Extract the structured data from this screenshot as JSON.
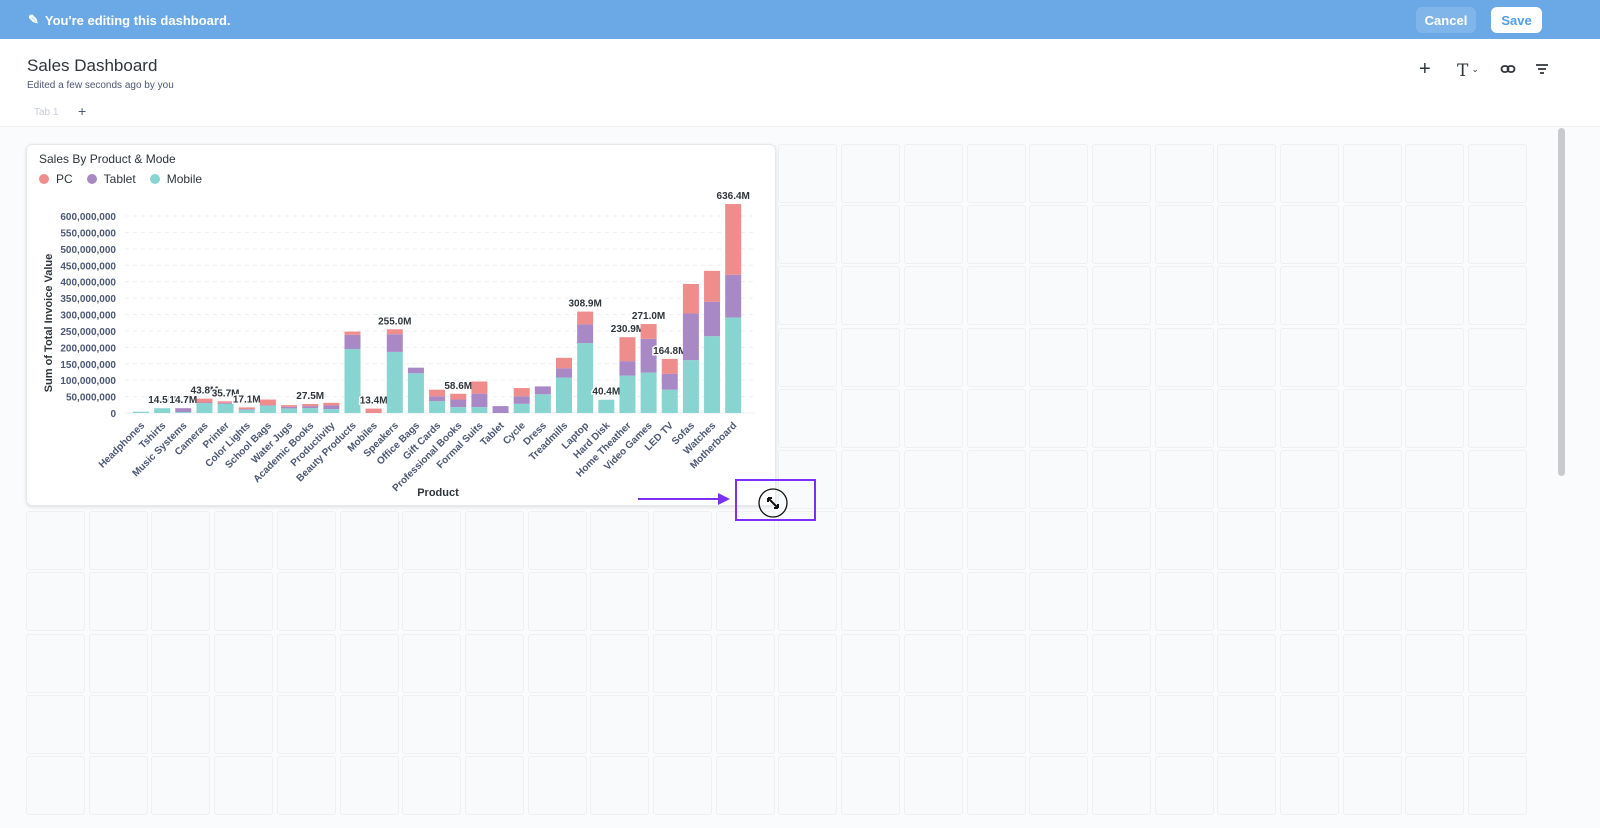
{
  "banner": {
    "message": "You're editing this dashboard.",
    "cancel_label": "Cancel",
    "save_label": "Save",
    "color": "#6aa9e6"
  },
  "header": {
    "title": "Sales Dashboard",
    "subtitle": "Edited a few seconds ago by you",
    "tabs": [
      {
        "label": "Tab 1"
      }
    ],
    "add_tab_label": "+",
    "tools": [
      {
        "icon": "plus-icon",
        "glyph": "+"
      },
      {
        "icon": "text-icon",
        "glyph": "T"
      },
      {
        "icon": "link-icon",
        "glyph": "⊂⊃"
      },
      {
        "icon": "filter-icon",
        "glyph": "≡"
      }
    ]
  },
  "card": {
    "title": "Sales By Product & Mode"
  },
  "chart_data": {
    "type": "bar",
    "stacked": true,
    "title": "Sales By Product & Mode",
    "xlabel": "Product",
    "ylabel": "Sum of Total Invoice Value",
    "ylim": [
      0,
      600000000
    ],
    "yticks": [
      "0",
      "50,000,000",
      "100,000,000",
      "150,000,000",
      "200,000,000",
      "250,000,000",
      "300,000,000",
      "350,000,000",
      "400,000,000",
      "450,000,000",
      "500,000,000",
      "550,000,000",
      "600,000,000"
    ],
    "grid": true,
    "legend_position": "top-left",
    "categories": [
      "Headphones",
      "Tshirts",
      "Music Systems",
      "Cameras",
      "Printer",
      "Color Lights",
      "School Bags",
      "Water Jugs",
      "Academic Books",
      "Productivity",
      "Beauty Products",
      "Mobiles",
      "Speakers",
      "Office Bags",
      "Gift Cards",
      "Professional Books",
      "Formal Suits",
      "Tablet",
      "Cycle",
      "Dress",
      "Treadmills",
      "Laptop",
      "Hard Disk",
      "Home Theather",
      "Video Games",
      "LED TV",
      "Sofas",
      "Watches",
      "Motherboard"
    ],
    "series": [
      {
        "name": "Mobile",
        "color": "#88d4d1",
        "values": [
          4,
          14.5,
          3,
          30,
          28,
          10,
          22,
          14,
          15,
          12,
          195,
          0,
          186,
          121,
          36,
          18,
          18,
          0,
          28,
          57,
          108,
          213,
          40.4,
          114,
          123,
          71,
          161,
          234,
          291
        ]
      },
      {
        "name": "Tablet",
        "color": "#a989c5",
        "values": [
          0,
          0,
          11.7,
          2,
          3,
          2,
          2,
          5,
          6,
          11,
          43,
          0,
          54,
          17,
          15,
          23,
          41,
          21,
          23,
          24,
          28,
          57,
          0,
          44,
          103,
          48,
          142,
          105,
          130
        ]
      },
      {
        "name": "PC",
        "color": "#ef8c8c",
        "values": [
          0,
          0,
          0,
          11.8,
          4.7,
          5.1,
          17,
          5,
          6.5,
          8,
          10,
          13.4,
          15,
          0,
          20,
          17.6,
          37,
          0,
          25,
          0,
          32,
          38.9,
          0,
          72.9,
          45,
          45.8,
          90,
          94,
          215.4
        ]
      }
    ],
    "value_unit": "millions",
    "data_labels": {
      "Tshirts": "14.5M",
      "Music Systems": "14.7M",
      "Cameras": "43.8M",
      "Printer": "35.7M",
      "Color Lights": "17.1M",
      "Academic Books": "27.5M",
      "Mobiles": "13.4M",
      "Speakers": "255.0M",
      "Professional Books": "58.6M",
      "Laptop": "308.9M",
      "Hard Disk": "40.4M",
      "Home Theather": "230.9M",
      "Video Games": "271.0M",
      "LED TV": "164.8M",
      "Motherboard": "636.4M"
    }
  },
  "legend": [
    {
      "name": "PC",
      "color": "#ef8c8c"
    },
    {
      "name": "Tablet",
      "color": "#a989c5"
    },
    {
      "name": "Mobile",
      "color": "#88d4d1"
    }
  ],
  "annotation": {
    "color": "#7b2ff7",
    "icon": "resize-icon"
  }
}
